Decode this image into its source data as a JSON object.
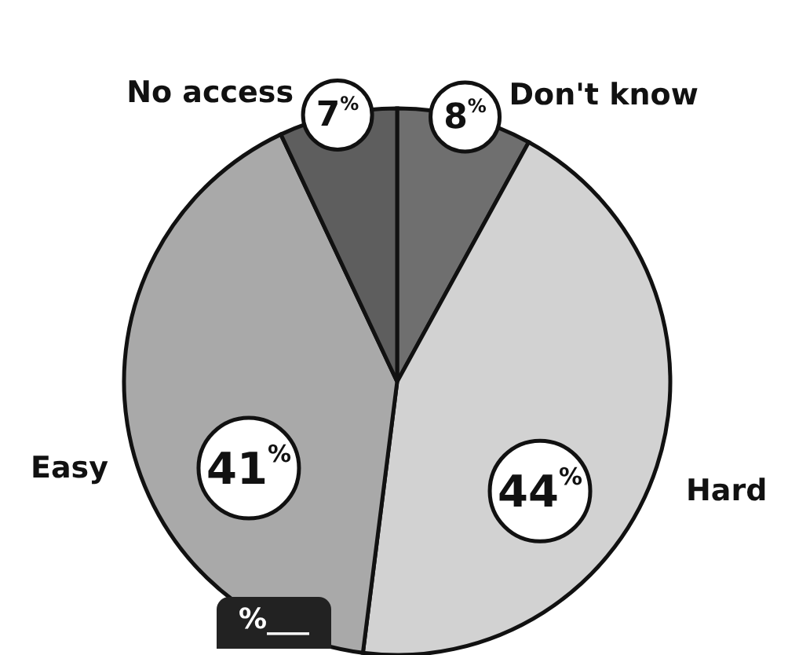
{
  "chart_data": {
    "type": "pie",
    "categories": [
      "Don't know",
      "Hard",
      "Easy",
      "No access"
    ],
    "values": [
      8,
      44,
      41,
      7
    ],
    "value_labels": [
      "8$^{%}$",
      "44$^{%}$",
      "41$^{%}$",
      "7$^{%}$"
    ],
    "colors": [
      "#6f6f6f",
      "#d2d2d2",
      "#a9a9a9",
      "#5e5e5e"
    ],
    "annotations": [
      "%___"
    ]
  }
}
